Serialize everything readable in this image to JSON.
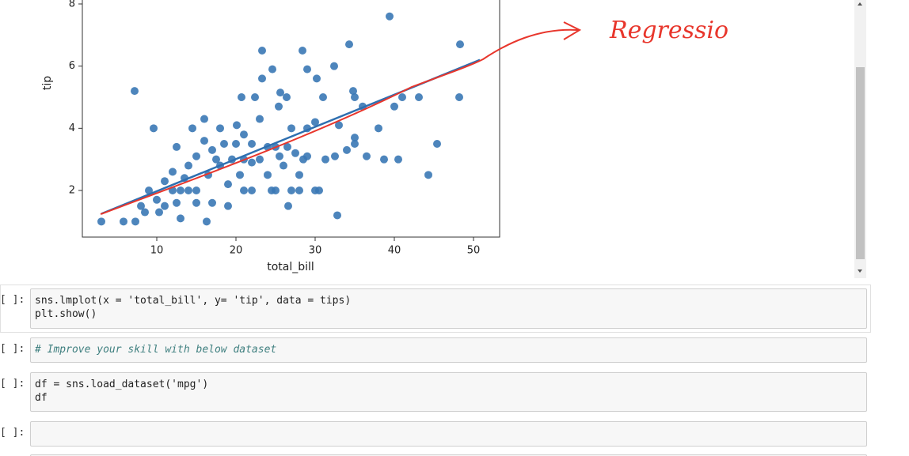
{
  "chart_data": {
    "type": "scatter",
    "xlabel": "total_bill",
    "ylabel": "tip",
    "color": "#3a78b5",
    "fit_color": "#2e6fb0",
    "annotation": "Regressio",
    "x": [
      3,
      5.8,
      7.3,
      7.2,
      9.6,
      12.5,
      14.5,
      16,
      16.3,
      18,
      20.1,
      20.7,
      22.4,
      23.3,
      23.3,
      24.6,
      25.4,
      25.6,
      26.4,
      28.4,
      29,
      30.2,
      31,
      32.4,
      34.3,
      34.8,
      35,
      39.4,
      38,
      38.7,
      40.5,
      41,
      43.1,
      44.3,
      45.4,
      48.3,
      48.2,
      32.8,
      26.6,
      30,
      30.5,
      28,
      27,
      25,
      24.5,
      22,
      21,
      19,
      17,
      15,
      14,
      13,
      12,
      11,
      10,
      9,
      8,
      8.5,
      10.3,
      13,
      15,
      16.5,
      17.5,
      18.5,
      19.5,
      20.5,
      21,
      22,
      23,
      24,
      25,
      25.5,
      26.5,
      27.5,
      28.5,
      29,
      31.3,
      32.5,
      35,
      35,
      12,
      14,
      15,
      16,
      17,
      18,
      19,
      20,
      21,
      22,
      23,
      24,
      26,
      27,
      28,
      29,
      30,
      33,
      36,
      40,
      34,
      36.5,
      11,
      13.5,
      12.5
    ],
    "values": [
      1,
      1,
      1,
      5.2,
      4,
      3.4,
      4,
      4.3,
      1,
      4,
      4.1,
      5,
      5,
      6.5,
      5.6,
      5.9,
      4.7,
      5.15,
      5,
      6.5,
      5.9,
      5.6,
      5,
      6,
      6.7,
      5.2,
      5,
      7.6,
      4,
      3,
      3,
      5,
      5,
      2.5,
      3.5,
      6.7,
      5,
      1.2,
      1.5,
      2,
      2,
      2,
      2,
      2,
      2,
      2,
      2,
      1.5,
      1.6,
      2,
      2,
      2,
      2,
      1.5,
      1.7,
      2,
      1.5,
      1.3,
      1.3,
      1.1,
      1.6,
      2.5,
      3,
      3.5,
      3,
      2.5,
      3,
      3.5,
      3,
      2.5,
      3.4,
      3.1,
      3.4,
      3.2,
      3,
      3.1,
      3,
      3.1,
      3.7,
      3.5,
      2.6,
      2.8,
      3.1,
      3.6,
      3.3,
      2.8,
      2.2,
      3.5,
      3.8,
      2.9,
      4.3,
      3.4,
      2.8,
      4,
      2.5,
      4,
      4.2,
      4.1,
      4.7,
      4.7,
      3.3,
      3.1,
      2.3,
      2.4,
      1.6
    ],
    "fit": {
      "x": [
        3,
        50.8
      ],
      "values": [
        1.25,
        6.2
      ]
    },
    "xlim": [
      0.6,
      53.3
    ],
    "ylim": [
      0.5,
      9.5
    ],
    "xticks": [
      10,
      20,
      30,
      40,
      50
    ],
    "yticks": [
      2,
      4,
      6,
      8
    ]
  },
  "cells": [
    {
      "prompt": "[ ]:",
      "lines": [
        "sns.lmplot(x = 'total_bill', y= 'tip', data = tips)",
        "plt.show()"
      ]
    },
    {
      "prompt": "[ ]:",
      "lines": [
        "# Improve your skill with below dataset"
      ]
    },
    {
      "prompt": "[ ]:",
      "lines": [
        "df = sns.load_dataset('mpg')",
        "df"
      ]
    },
    {
      "prompt": "[ ]:",
      "lines": []
    }
  ]
}
